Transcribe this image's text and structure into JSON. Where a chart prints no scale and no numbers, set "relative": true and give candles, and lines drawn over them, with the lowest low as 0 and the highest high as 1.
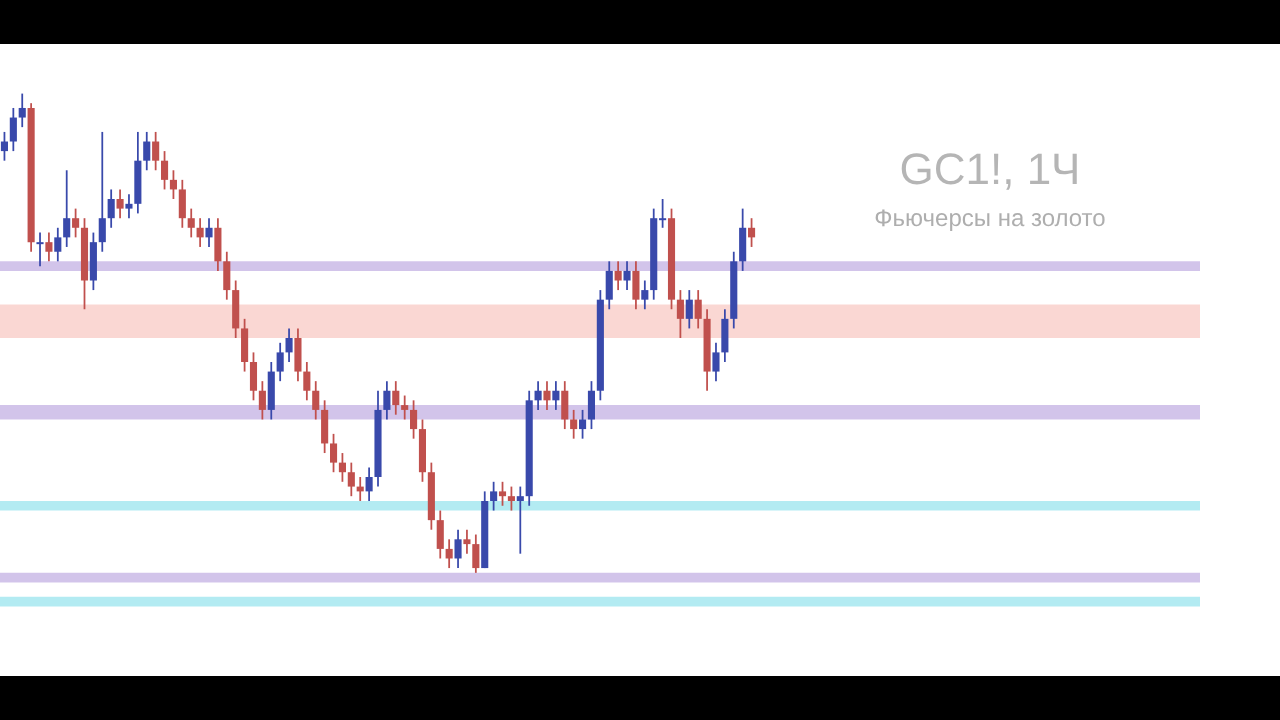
{
  "chart_data": {
    "type": "candlestick",
    "title": "GC1!, 1Ч",
    "subtitle": "Фьючерсы на золото",
    "relative": true,
    "tick_labels": false,
    "categories": [
      null,
      null,
      null,
      null,
      null,
      null,
      null,
      null,
      null,
      null,
      null,
      null,
      null,
      null,
      null,
      null,
      null,
      null,
      null,
      null,
      null,
      null,
      null,
      null,
      null,
      null,
      null,
      null,
      null,
      null,
      null,
      null,
      null,
      null,
      null,
      null,
      null,
      null,
      null,
      null,
      null,
      null,
      null,
      null,
      null,
      null,
      null,
      null,
      null,
      null,
      null,
      null,
      null,
      null,
      null,
      null,
      null,
      null,
      null,
      null,
      null,
      null,
      null,
      null,
      null,
      null,
      null,
      null,
      null,
      null,
      null,
      null,
      null,
      null,
      null,
      null,
      null,
      null,
      null,
      null,
      null,
      null,
      null,
      null,
      null
    ],
    "ohlc": [
      [
        0.88,
        0.92,
        0.86,
        0.9
      ],
      [
        0.9,
        0.97,
        0.88,
        0.95
      ],
      [
        0.95,
        1.0,
        0.93,
        0.97
      ],
      [
        0.97,
        0.98,
        0.67,
        0.69
      ],
      [
        0.69,
        0.71,
        0.64,
        0.69
      ],
      [
        0.69,
        0.71,
        0.65,
        0.67
      ],
      [
        0.67,
        0.72,
        0.65,
        0.7
      ],
      [
        0.7,
        0.84,
        0.68,
        0.74
      ],
      [
        0.74,
        0.76,
        0.7,
        0.72
      ],
      [
        0.72,
        0.74,
        0.55,
        0.61
      ],
      [
        0.61,
        0.71,
        0.59,
        0.69
      ],
      [
        0.69,
        0.92,
        0.67,
        0.74
      ],
      [
        0.74,
        0.8,
        0.72,
        0.78
      ],
      [
        0.78,
        0.8,
        0.74,
        0.76
      ],
      [
        0.76,
        0.79,
        0.74,
        0.77
      ],
      [
        0.77,
        0.92,
        0.75,
        0.86
      ],
      [
        0.86,
        0.92,
        0.84,
        0.9
      ],
      [
        0.9,
        0.92,
        0.84,
        0.86
      ],
      [
        0.86,
        0.88,
        0.8,
        0.82
      ],
      [
        0.82,
        0.84,
        0.78,
        0.8
      ],
      [
        0.8,
        0.82,
        0.72,
        0.74
      ],
      [
        0.74,
        0.76,
        0.7,
        0.72
      ],
      [
        0.72,
        0.74,
        0.68,
        0.7
      ],
      [
        0.7,
        0.74,
        0.68,
        0.72
      ],
      [
        0.72,
        0.74,
        0.63,
        0.65
      ],
      [
        0.65,
        0.67,
        0.57,
        0.59
      ],
      [
        0.59,
        0.61,
        0.49,
        0.51
      ],
      [
        0.51,
        0.53,
        0.42,
        0.44
      ],
      [
        0.44,
        0.46,
        0.36,
        0.38
      ],
      [
        0.38,
        0.4,
        0.32,
        0.34
      ],
      [
        0.34,
        0.44,
        0.32,
        0.42
      ],
      [
        0.42,
        0.48,
        0.4,
        0.46
      ],
      [
        0.46,
        0.51,
        0.44,
        0.49
      ],
      [
        0.49,
        0.51,
        0.4,
        0.42
      ],
      [
        0.42,
        0.44,
        0.36,
        0.38
      ],
      [
        0.38,
        0.4,
        0.32,
        0.34
      ],
      [
        0.34,
        0.36,
        0.25,
        0.27
      ],
      [
        0.27,
        0.29,
        0.21,
        0.23
      ],
      [
        0.23,
        0.25,
        0.19,
        0.21
      ],
      [
        0.21,
        0.23,
        0.16,
        0.18
      ],
      [
        0.18,
        0.2,
        0.15,
        0.17
      ],
      [
        0.17,
        0.22,
        0.15,
        0.2
      ],
      [
        0.2,
        0.38,
        0.18,
        0.34
      ],
      [
        0.34,
        0.4,
        0.32,
        0.38
      ],
      [
        0.38,
        0.4,
        0.33,
        0.35
      ],
      [
        0.35,
        0.37,
        0.32,
        0.34
      ],
      [
        0.34,
        0.36,
        0.28,
        0.3
      ],
      [
        0.3,
        0.32,
        0.19,
        0.21
      ],
      [
        0.21,
        0.23,
        0.09,
        0.11
      ],
      [
        0.11,
        0.13,
        0.03,
        0.05
      ],
      [
        0.05,
        0.07,
        0.01,
        0.03
      ],
      [
        0.03,
        0.09,
        0.01,
        0.07
      ],
      [
        0.07,
        0.09,
        0.04,
        0.06
      ],
      [
        0.06,
        0.08,
        0.0,
        0.01
      ],
      [
        0.01,
        0.17,
        0.01,
        0.15
      ],
      [
        0.15,
        0.19,
        0.13,
        0.17
      ],
      [
        0.17,
        0.19,
        0.14,
        0.16
      ],
      [
        0.16,
        0.18,
        0.13,
        0.15
      ],
      [
        0.15,
        0.18,
        0.04,
        0.16
      ],
      [
        0.16,
        0.38,
        0.14,
        0.36
      ],
      [
        0.36,
        0.4,
        0.34,
        0.38
      ],
      [
        0.38,
        0.4,
        0.34,
        0.36
      ],
      [
        0.36,
        0.4,
        0.34,
        0.38
      ],
      [
        0.38,
        0.4,
        0.3,
        0.32
      ],
      [
        0.32,
        0.34,
        0.28,
        0.3
      ],
      [
        0.3,
        0.34,
        0.28,
        0.32
      ],
      [
        0.32,
        0.4,
        0.3,
        0.38
      ],
      [
        0.38,
        0.59,
        0.36,
        0.57
      ],
      [
        0.57,
        0.65,
        0.55,
        0.63
      ],
      [
        0.63,
        0.65,
        0.59,
        0.61
      ],
      [
        0.61,
        0.65,
        0.59,
        0.63
      ],
      [
        0.63,
        0.65,
        0.55,
        0.57
      ],
      [
        0.57,
        0.61,
        0.55,
        0.59
      ],
      [
        0.59,
        0.76,
        0.57,
        0.74
      ],
      [
        0.74,
        0.78,
        0.72,
        0.74
      ],
      [
        0.74,
        0.76,
        0.55,
        0.57
      ],
      [
        0.57,
        0.59,
        0.49,
        0.53
      ],
      [
        0.53,
        0.59,
        0.51,
        0.57
      ],
      [
        0.57,
        0.59,
        0.51,
        0.53
      ],
      [
        0.53,
        0.55,
        0.38,
        0.42
      ],
      [
        0.42,
        0.48,
        0.4,
        0.46
      ],
      [
        0.46,
        0.55,
        0.44,
        0.53
      ],
      [
        0.53,
        0.67,
        0.51,
        0.65
      ],
      [
        0.65,
        0.76,
        0.63,
        0.72
      ],
      [
        0.72,
        0.74,
        0.68,
        0.7
      ]
    ],
    "bands": [
      {
        "axis": "y",
        "from": 0.63,
        "to": 0.65,
        "color": "#7e57c2"
      },
      {
        "axis": "y",
        "from": 0.49,
        "to": 0.56,
        "color": "#f28b82"
      },
      {
        "axis": "y",
        "from": 0.32,
        "to": 0.35,
        "color": "#7e57c2"
      },
      {
        "axis": "y",
        "from": 0.13,
        "to": 0.15,
        "color": "#26c6da"
      },
      {
        "axis": "y",
        "from": -0.02,
        "to": 0.0,
        "color": "#7e57c2"
      },
      {
        "axis": "y",
        "from": -0.07,
        "to": -0.05,
        "color": "#26c6da"
      }
    ]
  }
}
